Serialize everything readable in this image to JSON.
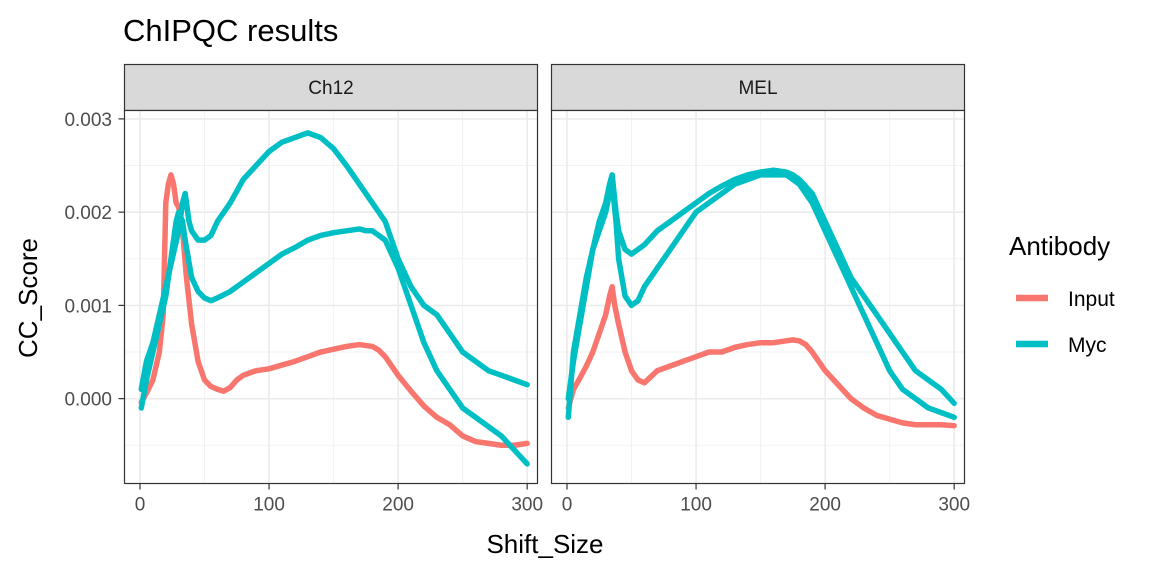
{
  "chart_data": {
    "type": "line",
    "title": "ChIPQC results",
    "xlabel": "Shift_Size",
    "ylabel": "CC_Score",
    "xlim": [
      -12,
      308
    ],
    "ylim": [
      -0.00091,
      0.00309
    ],
    "xticks": [
      0,
      100,
      200,
      300
    ],
    "xtick_labels": [
      "0",
      "100",
      "200",
      "300"
    ],
    "yticks": [
      0,
      0.001,
      0.002,
      0.003
    ],
    "ytick_labels": [
      "0.000",
      "0.001",
      "0.002",
      "0.003"
    ],
    "grid": true,
    "legend": {
      "title": "Antibody",
      "placement": "right",
      "entries": [
        {
          "label": "Input",
          "color": "#F8766D"
        },
        {
          "label": "Myc",
          "color": "#00BFC4"
        }
      ]
    },
    "facets": [
      {
        "label": "Ch12",
        "series": [
          {
            "antibody": "Input",
            "color": "#F8766D",
            "x": [
              1,
              5,
              10,
              15,
              18,
              20,
              22,
              24,
              26,
              28,
              30,
              33,
              36,
              40,
              45,
              50,
              55,
              60,
              65,
              70,
              75,
              80,
              90,
              100,
              110,
              120,
              130,
              140,
              150,
              160,
              170,
              180,
              185,
              190,
              200,
              210,
              220,
              230,
              240,
              250,
              260,
              270,
              280,
              290,
              300
            ],
            "y": [
              -4e-05,
              6e-05,
              0.0002,
              0.0005,
              0.0009,
              0.0021,
              0.0023,
              0.0024,
              0.0023,
              0.0021,
              0.00205,
              0.0018,
              0.0013,
              0.0008,
              0.0004,
              0.0002,
              0.00013,
              0.0001,
              8e-05,
              0.00012,
              0.0002,
              0.00025,
              0.0003,
              0.00032,
              0.00036,
              0.0004,
              0.00045,
              0.0005,
              0.00053,
              0.00056,
              0.00058,
              0.00056,
              0.00052,
              0.00045,
              0.00025,
              8e-05,
              -8e-05,
              -0.0002,
              -0.00028,
              -0.0004,
              -0.00046,
              -0.00048,
              -0.0005,
              -0.0005,
              -0.00048
            ]
          },
          {
            "antibody": "Myc",
            "color": "#00BFC4",
            "x": [
              1,
              5,
              10,
              15,
              20,
              25,
              30,
              33,
              35,
              38,
              40,
              45,
              50,
              55,
              60,
              70,
              80,
              90,
              100,
              110,
              120,
              130,
              140,
              150,
              160,
              170,
              180,
              190,
              200,
              210,
              220,
              230,
              240,
              250,
              260,
              270,
              280,
              290,
              300
            ],
            "y": [
              0.0001,
              0.0004,
              0.0006,
              0.0009,
              0.0012,
              0.0015,
              0.0018,
              0.0021,
              0.0022,
              0.0019,
              0.0018,
              0.0017,
              0.0017,
              0.00175,
              0.0019,
              0.0021,
              0.00235,
              0.0025,
              0.00265,
              0.00275,
              0.0028,
              0.00285,
              0.0028,
              0.00268,
              0.0025,
              0.0023,
              0.0021,
              0.0019,
              0.0015,
              0.0012,
              0.001,
              0.0009,
              0.0007,
              0.0005,
              0.0004,
              0.0003,
              0.00025,
              0.0002,
              0.00015
            ]
          },
          {
            "antibody": "Myc",
            "color": "#00BFC4",
            "x": [
              1,
              5,
              10,
              15,
              20,
              25,
              28,
              30,
              33,
              35,
              40,
              45,
              50,
              55,
              60,
              70,
              80,
              90,
              100,
              110,
              120,
              130,
              140,
              150,
              160,
              170,
              175,
              180,
              185,
              190,
              200,
              210,
              220,
              230,
              240,
              250,
              260,
              270,
              280,
              290,
              300
            ],
            "y": [
              -0.0001,
              0.0002,
              0.0005,
              0.0008,
              0.0011,
              0.0016,
              0.0019,
              0.002,
              0.0019,
              0.0017,
              0.0013,
              0.00115,
              0.00108,
              0.00105,
              0.00108,
              0.00115,
              0.00125,
              0.00135,
              0.00145,
              0.00155,
              0.00162,
              0.0017,
              0.00175,
              0.00178,
              0.0018,
              0.00182,
              0.0018,
              0.0018,
              0.00175,
              0.0017,
              0.0014,
              0.001,
              0.0006,
              0.0003,
              0.0001,
              -0.0001,
              -0.0002,
              -0.0003,
              -0.0004,
              -0.00055,
              -0.0007
            ]
          }
        ]
      },
      {
        "label": "MEL",
        "series": [
          {
            "antibody": "Input",
            "color": "#F8766D",
            "x": [
              1,
              5,
              10,
              15,
              20,
              25,
              30,
              33,
              35,
              37,
              40,
              45,
              50,
              55,
              60,
              70,
              80,
              90,
              100,
              110,
              120,
              130,
              140,
              150,
              160,
              170,
              175,
              180,
              185,
              190,
              200,
              210,
              220,
              230,
              240,
              250,
              260,
              270,
              280,
              290,
              300
            ],
            "y": [
              -0.0001,
              0.0001,
              0.00022,
              0.00035,
              0.0005,
              0.0007,
              0.0009,
              0.0011,
              0.0012,
              0.001,
              0.0008,
              0.0005,
              0.0003,
              0.0002,
              0.00017,
              0.0003,
              0.00035,
              0.0004,
              0.00045,
              0.0005,
              0.0005,
              0.00055,
              0.00058,
              0.0006,
              0.0006,
              0.00062,
              0.00063,
              0.00062,
              0.00058,
              0.0005,
              0.0003,
              0.00015,
              0.0,
              -0.0001,
              -0.00018,
              -0.00022,
              -0.00026,
              -0.00028,
              -0.00028,
              -0.00028,
              -0.00029
            ]
          },
          {
            "antibody": "Myc",
            "color": "#00BFC4",
            "x": [
              1,
              5,
              10,
              15,
              20,
              25,
              30,
              33,
              35,
              38,
              40,
              45,
              50,
              55,
              60,
              70,
              80,
              90,
              100,
              110,
              120,
              130,
              140,
              150,
              160,
              170,
              175,
              180,
              190,
              200,
              210,
              220,
              230,
              240,
              250,
              260,
              270,
              280,
              290,
              300
            ],
            "y": [
              -0.0002,
              0.0005,
              0.0009,
              0.0013,
              0.0016,
              0.0018,
              0.002,
              0.0022,
              0.0023,
              0.0019,
              0.0015,
              0.0011,
              0.001,
              0.00105,
              0.0012,
              0.0014,
              0.0016,
              0.0018,
              0.002,
              0.0021,
              0.0022,
              0.0023,
              0.00235,
              0.0024,
              0.0024,
              0.0024,
              0.00235,
              0.0023,
              0.0021,
              0.0018,
              0.0015,
              0.0012,
              0.0009,
              0.0006,
              0.0003,
              0.0001,
              0.0,
              -0.0001,
              -0.00015,
              -0.0002
            ]
          },
          {
            "antibody": "Myc",
            "color": "#00BFC4",
            "x": [
              1,
              5,
              10,
              15,
              20,
              25,
              30,
              33,
              35,
              38,
              40,
              45,
              50,
              55,
              60,
              70,
              80,
              90,
              100,
              110,
              120,
              130,
              140,
              150,
              160,
              170,
              175,
              180,
              190,
              200,
              210,
              220,
              230,
              240,
              250,
              260,
              270,
              280,
              290,
              300
            ],
            "y": [
              0.0,
              0.0004,
              0.0008,
              0.0012,
              0.0016,
              0.0019,
              0.0021,
              0.0023,
              0.0024,
              0.002,
              0.0018,
              0.0016,
              0.00155,
              0.0016,
              0.00165,
              0.0018,
              0.0019,
              0.002,
              0.0021,
              0.0022,
              0.00228,
              0.00235,
              0.0024,
              0.00243,
              0.00245,
              0.00243,
              0.0024,
              0.00235,
              0.0022,
              0.0019,
              0.0016,
              0.0013,
              0.0011,
              0.0009,
              0.0007,
              0.0005,
              0.0003,
              0.0002,
              0.0001,
              -5e-05
            ]
          }
        ]
      }
    ]
  }
}
